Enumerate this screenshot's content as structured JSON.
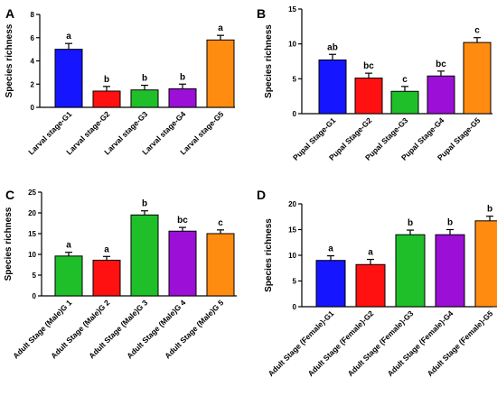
{
  "colors": {
    "blue": "#1515ff",
    "red": "#ff1111",
    "green": "#1fbf2a",
    "purple": "#9b0fd6",
    "orange": "#ff8c10"
  },
  "chart_data": [
    {
      "type": "bar",
      "panel": "A",
      "ylabel": "Species richness",
      "ylim": [
        0,
        8
      ],
      "yticks": [
        0,
        2,
        4,
        6,
        8
      ],
      "categories": [
        "Larval stage-G1",
        "Larval stage-G2",
        "Larval stage-G3",
        "Larval stage-G4",
        "Larval stage-G5"
      ],
      "values": [
        5.0,
        1.4,
        1.5,
        1.6,
        5.8
      ],
      "errors": [
        0.5,
        0.4,
        0.4,
        0.4,
        0.4
      ],
      "letters": [
        "a",
        "b",
        "b",
        "b",
        "a"
      ],
      "bar_colors": [
        "#1515ff",
        "#ff1111",
        "#1fbf2a",
        "#9b0fd6",
        "#ff8c10"
      ]
    },
    {
      "type": "bar",
      "panel": "B",
      "ylabel": "Species richness",
      "ylim": [
        0,
        15
      ],
      "yticks": [
        0,
        5,
        10,
        15
      ],
      "categories": [
        "Pupal Stage-G1",
        "Pupal Stage-G2",
        "Pupal Stage-G3",
        "Pupal Stage-G4",
        "Pupal Stage-G5"
      ],
      "values": [
        7.7,
        5.1,
        3.2,
        5.4,
        10.2
      ],
      "errors": [
        0.8,
        0.7,
        0.7,
        0.7,
        0.7
      ],
      "letters": [
        "ab",
        "bc",
        "c",
        "bc",
        "c"
      ],
      "bar_colors": [
        "#1515ff",
        "#ff1111",
        "#1fbf2a",
        "#9b0fd6",
        "#ff8c10"
      ]
    },
    {
      "type": "bar",
      "panel": "C",
      "ylabel": "Species richness",
      "ylim": [
        0,
        25
      ],
      "yticks": [
        0,
        5,
        10,
        15,
        20,
        25
      ],
      "categories": [
        "Adult Stage (Male)G 1",
        "Adult Stage (Male)G 2",
        "Adult Stage (Male)G 3",
        "Adult Stage (Male)G 4",
        "Adult Stage (Male)G 5"
      ],
      "values": [
        9.6,
        8.6,
        19.5,
        15.6,
        15.0
      ],
      "errors": [
        0.9,
        0.9,
        1.0,
        0.9,
        0.9
      ],
      "letters": [
        "a",
        "a",
        "b",
        "bc",
        "c"
      ],
      "bar_colors": [
        "#1fbf2a",
        "#ff1111",
        "#1fbf2a",
        "#9b0fd6",
        "#ff8c10"
      ]
    },
    {
      "type": "bar",
      "panel": "D",
      "ylabel": "Species richness",
      "ylim": [
        0,
        20
      ],
      "yticks": [
        0,
        5,
        10,
        15,
        20
      ],
      "categories": [
        "Adult Stage (Female)-G1",
        "Adult Stage (Female)-G2",
        "Adult Stage (Female)-G3",
        "Adult Stage (Female)-G4",
        "Adult Stage (Female)-G5"
      ],
      "values": [
        9.0,
        8.2,
        14.0,
        14.0,
        16.7
      ],
      "errors": [
        0.9,
        1.0,
        0.9,
        1.0,
        0.9
      ],
      "letters": [
        "a",
        "a",
        "b",
        "b",
        "b"
      ],
      "bar_colors": [
        "#1515ff",
        "#ff1111",
        "#1fbf2a",
        "#9b0fd6",
        "#ff8c10"
      ]
    }
  ]
}
